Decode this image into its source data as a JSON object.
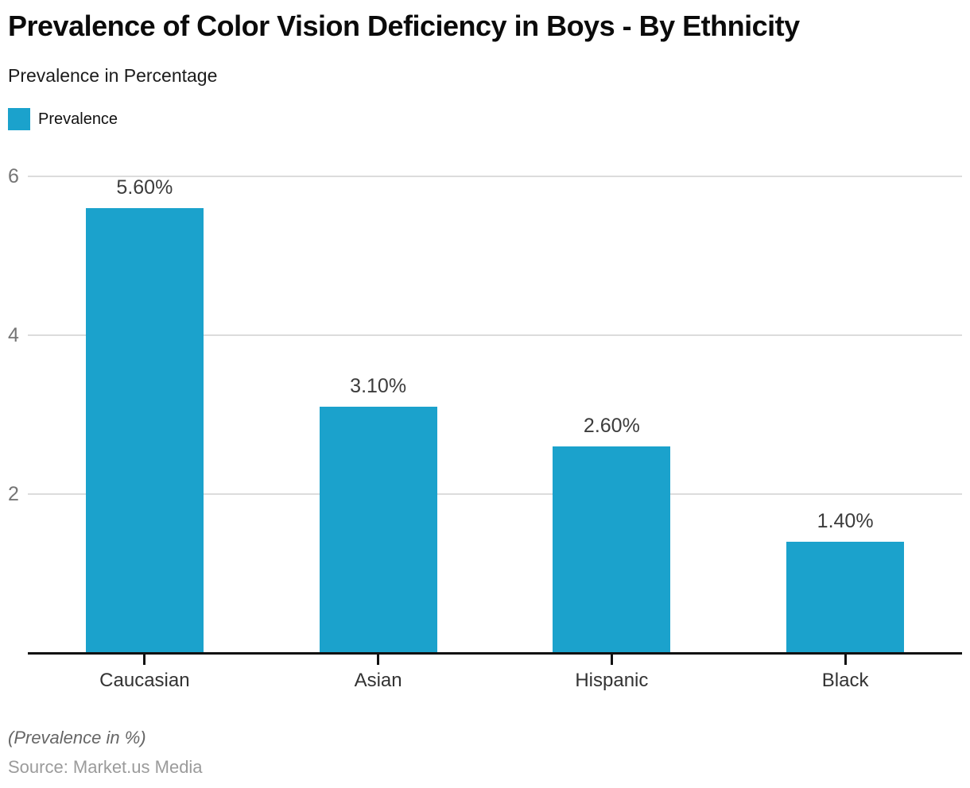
{
  "page": {
    "title": "Prevalence of Color Vision Deficiency in Boys - By Ethnicity",
    "subtitle": "Prevalence in Percentage",
    "footnote": "(Prevalence in %)",
    "source": "Source: Market.us Media"
  },
  "legend": {
    "label": "Prevalence",
    "swatch_color": "#1ba2cc"
  },
  "chart_data": {
    "type": "bar",
    "title": "Prevalence of Color Vision Deficiency in Boys - By Ethnicity",
    "subtitle": "Prevalence in Percentage",
    "series_name": "Prevalence",
    "categories": [
      "Caucasian",
      "Asian",
      "Hispanic",
      "Black"
    ],
    "values": [
      5.6,
      3.1,
      2.6,
      1.4
    ],
    "value_labels": [
      "5.60%",
      "3.10%",
      "2.60%",
      "1.40%"
    ],
    "xlabel": "",
    "ylabel": "Prevalence in Percentage",
    "ylim": [
      0,
      6
    ],
    "yticks": [
      2,
      4,
      6
    ],
    "grid": "horizontal",
    "legend_position": "top-left",
    "bar_color": "#1ba2cc",
    "gridline_color": "#dcdcdc",
    "axis_color": "#111111",
    "footnote": "(Prevalence in %)",
    "source": "Source: Market.us Media"
  }
}
